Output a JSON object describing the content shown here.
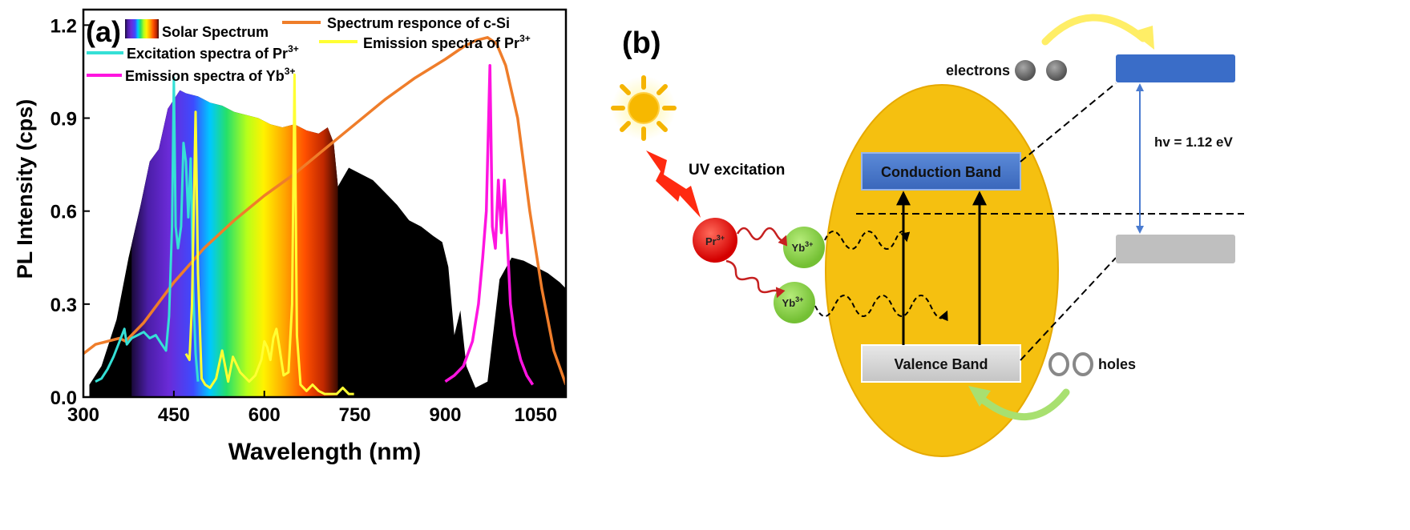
{
  "panel_a": {
    "label": "(a)",
    "legend": {
      "solar": "Solar Spectrum",
      "csi": "Spectrum responce of c-Si",
      "exc_pr": "Excitation spectra of Pr",
      "em_pr": "Emission spectra of Pr",
      "em_yb": "Emission spectra of Yb",
      "sup3": "3+"
    }
  },
  "panel_b": {
    "label": "(b)",
    "uv": "UV excitation",
    "electrons": "electrons",
    "holes": "holes",
    "cb": "Conduction Band",
    "vb": "Valence Band",
    "hv": "hv = 1.12 eV",
    "pr_ion": "Pr",
    "yb_ion": "Yb",
    "ion_charge": "3+"
  },
  "chart_data": {
    "type": "line",
    "xlabel": "Wavelength (nm)",
    "ylabel": "PL Intensity (cps)",
    "xlim": [
      300,
      1100
    ],
    "ylim": [
      0,
      1.25
    ],
    "xticks": [
      300,
      450,
      600,
      750,
      900,
      1050
    ],
    "yticks": [
      0.0,
      0.3,
      0.6,
      0.9,
      1.2
    ],
    "xtick_labels": [
      "300",
      "450",
      "600",
      "750",
      "900",
      "1050"
    ],
    "ytick_labels": [
      "0.0",
      "0.3",
      "0.6",
      "0.9",
      "1.2"
    ],
    "grid": false,
    "legend_position": "top",
    "colors": {
      "solar": "#000000",
      "csi": "#ef7d2a",
      "exc_pr": "#35e0d6",
      "em_pr": "#ffff33",
      "em_yb": "#ff14e0"
    },
    "series": [
      {
        "name": "Solar Spectrum",
        "type": "area",
        "x": [
          310,
          330,
          355,
          375,
          395,
          410,
          425,
          440,
          450,
          460,
          470,
          490,
          510,
          530,
          550,
          570,
          590,
          610,
          630,
          650,
          670,
          690,
          705,
          715,
          722,
          740,
          760,
          780,
          800,
          820,
          840,
          860,
          880,
          895,
          905,
          915,
          925,
          935,
          950,
          970,
          990,
          1010,
          1030,
          1050,
          1070,
          1090,
          1100
        ],
        "y": [
          0.04,
          0.1,
          0.25,
          0.45,
          0.62,
          0.76,
          0.8,
          0.93,
          0.96,
          0.99,
          0.98,
          0.97,
          0.95,
          0.94,
          0.92,
          0.91,
          0.9,
          0.88,
          0.87,
          0.88,
          0.86,
          0.85,
          0.87,
          0.82,
          0.68,
          0.74,
          0.72,
          0.7,
          0.66,
          0.62,
          0.57,
          0.55,
          0.52,
          0.5,
          0.42,
          0.2,
          0.28,
          0.1,
          0.03,
          0.05,
          0.38,
          0.45,
          0.44,
          0.42,
          0.4,
          0.37,
          0.35
        ]
      },
      {
        "name": "Spectrum responce of c-Si",
        "x": [
          300,
          320,
          340,
          360,
          370,
          380,
          400,
          450,
          500,
          550,
          600,
          650,
          700,
          750,
          800,
          850,
          900,
          930,
          950,
          970,
          985,
          1000,
          1020,
          1040,
          1060,
          1080,
          1100
        ],
        "y": [
          0.14,
          0.17,
          0.18,
          0.19,
          0.18,
          0.2,
          0.24,
          0.37,
          0.48,
          0.57,
          0.65,
          0.72,
          0.8,
          0.88,
          0.96,
          1.03,
          1.09,
          1.13,
          1.15,
          1.16,
          1.14,
          1.07,
          0.9,
          0.6,
          0.35,
          0.15,
          0.04
        ]
      },
      {
        "name": "Excitation spectra of Pr3+",
        "x": [
          320,
          330,
          340,
          350,
          360,
          368,
          372,
          380,
          390,
          400,
          410,
          420,
          430,
          437,
          442,
          447,
          450,
          453,
          457,
          462,
          466,
          470,
          474,
          478,
          482,
          486,
          490
        ],
        "y": [
          0.05,
          0.06,
          0.09,
          0.13,
          0.18,
          0.22,
          0.17,
          0.19,
          0.2,
          0.21,
          0.19,
          0.2,
          0.17,
          0.15,
          0.26,
          0.55,
          1.03,
          0.55,
          0.48,
          0.55,
          0.82,
          0.76,
          0.58,
          0.77,
          0.35,
          0.14,
          0.05
        ]
      },
      {
        "name": "Emission spectra of Pr3+",
        "x": [
          470,
          476,
          480,
          483,
          486,
          490,
          496,
          502,
          510,
          520,
          530,
          540,
          548,
          560,
          575,
          585,
          595,
          600,
          605,
          610,
          615,
          620,
          625,
          632,
          640,
          646,
          650,
          654,
          660,
          670,
          680,
          690,
          700,
          720,
          730,
          740,
          750
        ],
        "y": [
          0.14,
          0.12,
          0.3,
          0.6,
          0.92,
          0.4,
          0.06,
          0.04,
          0.03,
          0.06,
          0.15,
          0.05,
          0.13,
          0.08,
          0.05,
          0.07,
          0.12,
          0.18,
          0.16,
          0.12,
          0.19,
          0.22,
          0.16,
          0.07,
          0.08,
          0.3,
          1.04,
          0.2,
          0.04,
          0.02,
          0.04,
          0.02,
          0.01,
          0.01,
          0.03,
          0.01,
          0.01
        ]
      },
      {
        "name": "Emission spectra of Yb3+",
        "x": [
          900,
          915,
          930,
          945,
          955,
          962,
          968,
          974,
          978,
          983,
          988,
          993,
          998,
          1003,
          1008,
          1015,
          1025,
          1035,
          1045
        ],
        "y": [
          0.05,
          0.07,
          0.1,
          0.18,
          0.3,
          0.45,
          0.6,
          1.07,
          0.55,
          0.48,
          0.7,
          0.53,
          0.7,
          0.5,
          0.3,
          0.2,
          0.12,
          0.07,
          0.04
        ]
      }
    ]
  }
}
